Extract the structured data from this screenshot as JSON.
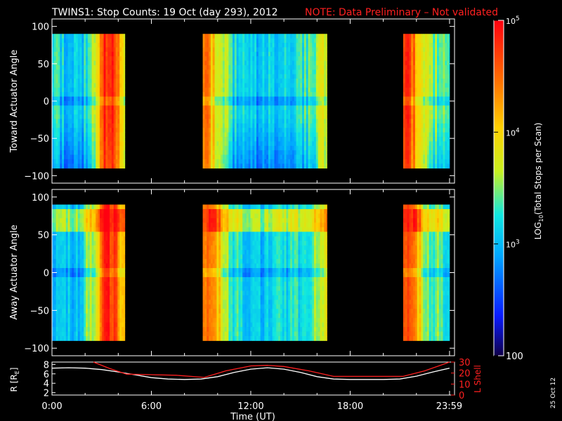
{
  "header": {
    "title": "TWINS1: Stop Counts: 19 Oct (day 293), 2012",
    "note": "NOTE: Data Preliminary – Not validated",
    "title_color": "#ffffff",
    "note_color": "#ff2020"
  },
  "side_stamp": "25 Oct 12",
  "chart_data": [
    {
      "type": "heatmap",
      "ylabel": "Toward Actuator Angle",
      "ylim": [
        -110,
        110
      ],
      "yticks": [
        "100",
        "50",
        "0",
        "−50",
        "−100"
      ],
      "ytick_values": [
        100,
        50,
        0,
        -50,
        -100
      ],
      "angle_range": [
        -90,
        90
      ],
      "data_intervals_hours": [
        [
          0,
          4.4
        ],
        [
          9.1,
          16.6
        ],
        [
          21.2,
          24
        ]
      ],
      "time_hours": [
        0,
        0.8,
        1.7,
        2.6,
        3.2,
        3.8,
        4.2,
        9.2,
        9.8,
        11,
        12.5,
        14,
        15.5,
        16.5,
        21.3,
        21.8,
        22.6,
        24
      ],
      "level_log10": [
        3.3,
        3.1,
        3.0,
        3.6,
        4.8,
        4.7,
        3.9,
        4.5,
        4.0,
        3.2,
        3.0,
        3.2,
        3.3,
        3.8,
        4.8,
        4.5,
        3.6,
        3.3
      ]
    },
    {
      "type": "heatmap",
      "ylabel": "Away Actuator Angle",
      "ylim": [
        -110,
        110
      ],
      "yticks": [
        "100",
        "50",
        "0",
        "−50",
        "−100"
      ],
      "ytick_values": [
        100,
        50,
        0,
        -50,
        -100
      ],
      "angle_range": [
        -90,
        90
      ],
      "data_intervals_hours": [
        [
          0,
          4.4
        ],
        [
          9.1,
          16.6
        ],
        [
          21.2,
          24
        ]
      ],
      "time_hours": [
        0,
        0.8,
        1.7,
        2.6,
        3.2,
        3.8,
        4.2,
        9.2,
        9.8,
        11,
        12.5,
        14,
        15.5,
        16.5,
        21.3,
        21.8,
        22.6,
        24
      ],
      "level_log10": [
        3.1,
        3.0,
        3.1,
        3.8,
        4.8,
        4.7,
        4.0,
        4.6,
        4.2,
        3.3,
        3.0,
        3.2,
        3.3,
        3.7,
        4.8,
        4.4,
        3.5,
        3.3
      ]
    },
    {
      "type": "line",
      "ylabel_left": "R [R",
      "ylabel_left_sub": "E",
      "ylabel_left_close": "]",
      "ylabel_right": "L Shell",
      "ylim_left": [
        1.5,
        8.5
      ],
      "yticks_left": [
        "8",
        "6",
        "4",
        "2"
      ],
      "ytick_values_left": [
        8,
        6,
        4,
        2
      ],
      "ylim_right": [
        0,
        30
      ],
      "yticks_right": [
        "30",
        "20",
        "10",
        "0"
      ],
      "ytick_values_right": [
        30,
        20,
        10,
        0
      ],
      "xlim": [
        0,
        24.3
      ],
      "xlabel": "Time (UT)",
      "xticks": [
        "0:00",
        "6:00",
        "12:00",
        "18:00",
        "23:59"
      ],
      "xtick_values": [
        0,
        6,
        12,
        18,
        23.98
      ],
      "series": [
        {
          "color": "#ffffff",
          "x": [
            0,
            1,
            2,
            3,
            4,
            5,
            6,
            7,
            8,
            9,
            10,
            11,
            12,
            13,
            14,
            15,
            16,
            17,
            18,
            19,
            20,
            21,
            22,
            23,
            24
          ],
          "y": [
            7.2,
            7.3,
            7.2,
            6.9,
            6.4,
            5.8,
            5.2,
            4.9,
            4.8,
            4.9,
            5.4,
            6.3,
            7.0,
            7.3,
            7.0,
            6.3,
            5.4,
            4.9,
            4.8,
            4.8,
            4.8,
            4.9,
            5.5,
            6.4,
            7.2
          ]
        },
        {
          "color": "#ff2020",
          "x": [
            2.5,
            3.5,
            4.5,
            6,
            7.5,
            9.2,
            10.5,
            12,
            13,
            14,
            15.5,
            17,
            18.5,
            20,
            21.2,
            22.5,
            24
          ],
          "y": [
            30,
            24,
            19,
            18.5,
            18,
            16,
            22,
            26.5,
            27,
            26,
            22,
            17,
            17,
            17,
            17,
            22,
            30
          ]
        }
      ]
    }
  ],
  "colorbar": {
    "label": "LOG10(Total Stops per Scan)",
    "label_main": "LOG",
    "label_sub": "10",
    "label_rest": "(Total Stops per Scan)",
    "scale": "log",
    "range": [
      100,
      100000
    ],
    "ticks": [
      {
        "value": 100000,
        "base": "10",
        "exp": "5"
      },
      {
        "value": 10000,
        "base": "10",
        "exp": "4"
      },
      {
        "value": 1000,
        "base": "10",
        "exp": "3"
      },
      {
        "value": 100,
        "base": "100",
        "exp": ""
      }
    ]
  }
}
